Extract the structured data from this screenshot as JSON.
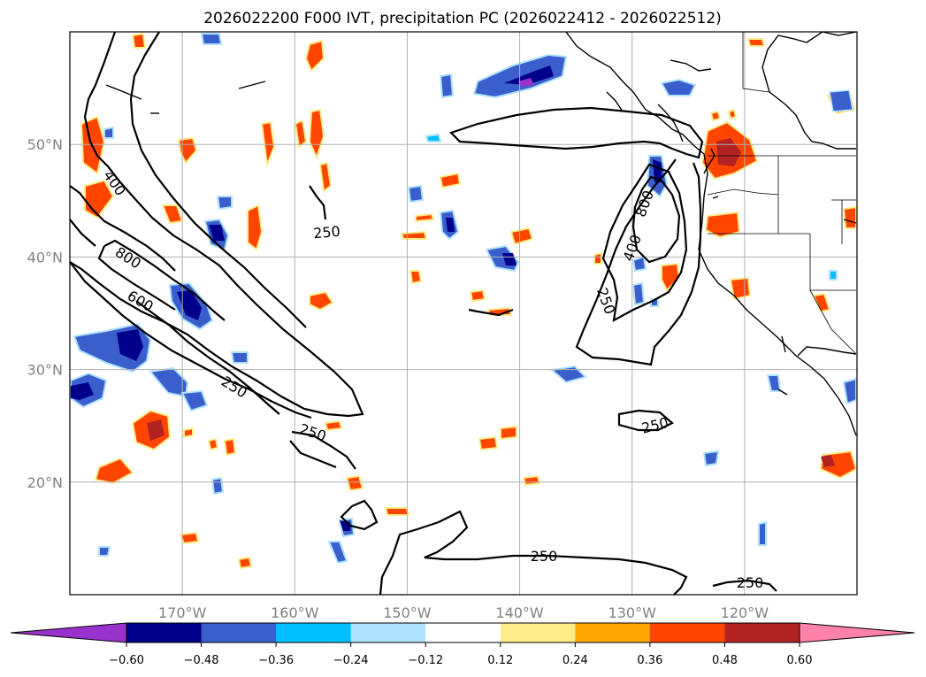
{
  "title": "2026022200 F000 IVT, precipitation PC (2026022412 - 2026022512)",
  "map": {
    "lon_range": [
      -180,
      -110
    ],
    "lat_range": [
      10,
      60
    ],
    "lon_gridlines": [
      -170,
      -160,
      -150,
      -140,
      -130,
      -120
    ],
    "lat_gridlines": [
      20,
      30,
      40,
      50
    ],
    "lon_labels": [
      "170°W",
      "160°W",
      "150°W",
      "140°W",
      "130°W",
      "120°W"
    ],
    "lat_labels": [
      "20°N",
      "30°N",
      "40°N",
      "50°N"
    ]
  },
  "ivt_contour_labels": [
    "400",
    "250",
    "800",
    "600",
    "250",
    "250",
    "800",
    "400",
    "250",
    "250",
    "250",
    "250"
  ],
  "colorbar": {
    "ticks": [
      "−0.60",
      "−0.48",
      "−0.36",
      "−0.24",
      "−0.12",
      "0.12",
      "0.24",
      "0.36",
      "0.48",
      "0.60"
    ],
    "colors": [
      "#9932cc",
      "#00008b",
      "#3a5fcd",
      "#00bfff",
      "#b0e2ff",
      "#ffffff",
      "#ffec8b",
      "#ffa500",
      "#ff4500",
      "#b22222",
      "#ff82ab"
    ]
  },
  "colors": {
    "grid": "#b0b0b0",
    "coast": "#000000",
    "contour": "#000000"
  }
}
